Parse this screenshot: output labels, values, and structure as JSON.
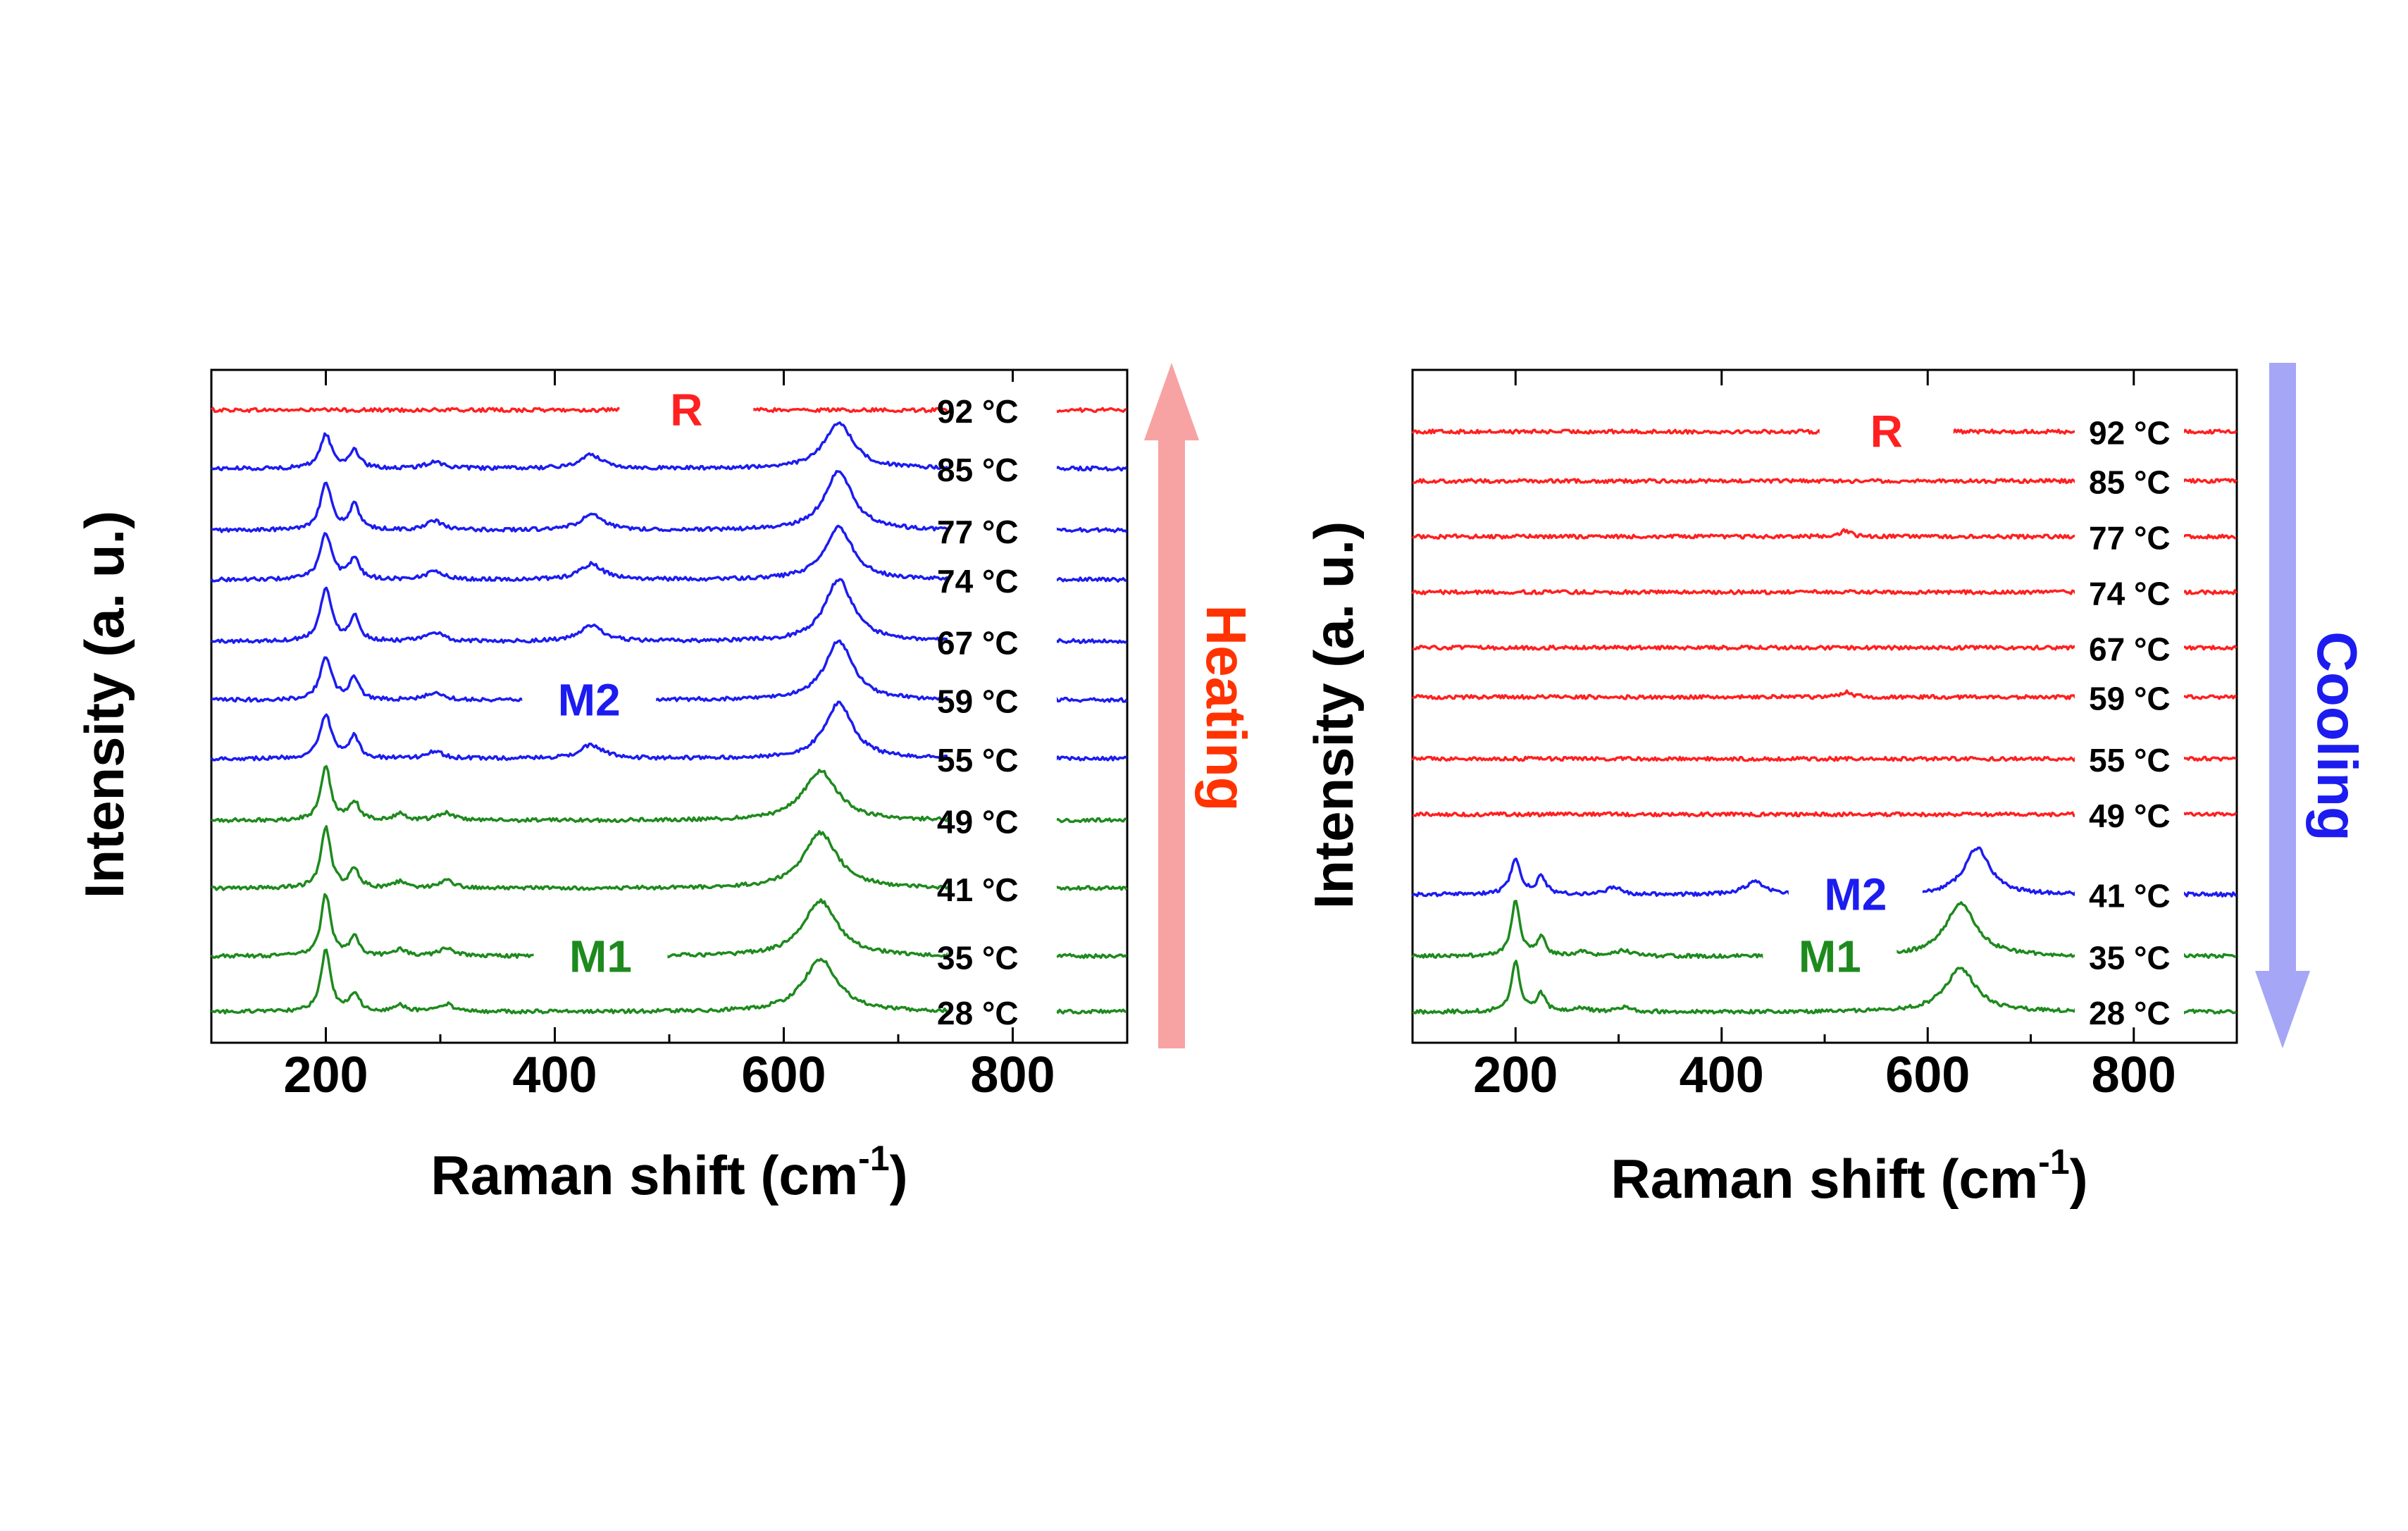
{
  "colors": {
    "R": "#ff2020",
    "M2": "#1c1cf0",
    "M1": "#1e8a1e",
    "axis": "#000000",
    "heating_arrow": "#f8a3a3",
    "heating_text": "#ff3300",
    "cooling_arrow": "#a6a6f6",
    "cooling_text": "#1c1cf0"
  },
  "chart_data": [
    {
      "type": "line",
      "xlabel": "Raman shift (cm",
      "xlabel_sup": "-1",
      "xlabel_end": ")",
      "ylabel": "Intensity (a. u.)",
      "xlim": [
        100,
        900
      ],
      "xticks": [
        {
          "value": 200,
          "label": "200"
        },
        {
          "value": 400,
          "label": "400"
        },
        {
          "value": 600,
          "label": "600"
        },
        {
          "value": 800,
          "label": "800"
        }
      ],
      "arrow": {
        "text": "Heating",
        "direction": "up"
      },
      "phase_labels": [
        {
          "text": "R",
          "phase": "R",
          "x": 515,
          "series": "92"
        },
        {
          "text": "M2",
          "phase": "M2",
          "x": 430,
          "series": "59"
        },
        {
          "text": "M1",
          "phase": "M1",
          "x": 440,
          "series": "35"
        }
      ],
      "series": [
        {
          "temp": "92",
          "label": "92 °C",
          "phase": "R",
          "offset": 9.95,
          "peaks": []
        },
        {
          "temp": "85",
          "label": "85 °C",
          "phase": "M2",
          "offset": 9.0,
          "peaks": [
            [
              200,
              0.55,
              6
            ],
            [
              225,
              0.3,
              5
            ],
            [
              295,
              0.12,
              8
            ],
            [
              432,
              0.22,
              12
            ],
            [
              648,
              0.75,
              15
            ]
          ]
        },
        {
          "temp": "77",
          "label": "77 °C",
          "phase": "M2",
          "offset": 8.0,
          "peaks": [
            [
              200,
              0.75,
              6
            ],
            [
              225,
              0.4,
              5
            ],
            [
              295,
              0.15,
              8
            ],
            [
              432,
              0.25,
              12
            ],
            [
              648,
              0.95,
              15
            ]
          ]
        },
        {
          "temp": "74",
          "label": "74 °C",
          "phase": "M2",
          "offset": 7.2,
          "peaks": [
            [
              200,
              0.75,
              6
            ],
            [
              225,
              0.35,
              5
            ],
            [
              295,
              0.15,
              8
            ],
            [
              432,
              0.25,
              12
            ],
            [
              648,
              0.85,
              15
            ]
          ]
        },
        {
          "temp": "67",
          "label": "67 °C",
          "phase": "M2",
          "offset": 6.2,
          "peaks": [
            [
              200,
              0.85,
              6
            ],
            [
              225,
              0.4,
              5
            ],
            [
              295,
              0.15,
              8
            ],
            [
              432,
              0.25,
              12
            ],
            [
              648,
              1.0,
              15
            ]
          ]
        },
        {
          "temp": "59",
          "label": "59 °C",
          "phase": "M2",
          "offset": 5.25,
          "peaks": [
            [
              200,
              0.7,
              6
            ],
            [
              225,
              0.35,
              5
            ],
            [
              295,
              0.12,
              8
            ],
            [
              432,
              0.22,
              12
            ],
            [
              648,
              0.95,
              15
            ]
          ]
        },
        {
          "temp": "55",
          "label": "55 °C",
          "phase": "M2",
          "offset": 4.3,
          "peaks": [
            [
              200,
              0.7,
              6
            ],
            [
              225,
              0.35,
              5
            ],
            [
              295,
              0.12,
              8
            ],
            [
              432,
              0.22,
              12
            ],
            [
              648,
              0.9,
              15
            ]
          ]
        },
        {
          "temp": "49",
          "label": "49 °C",
          "phase": "M1",
          "offset": 3.3,
          "peaks": [
            [
              200,
              0.9,
              5
            ],
            [
              225,
              0.3,
              5
            ],
            [
              265,
              0.1,
              6
            ],
            [
              305,
              0.12,
              8
            ],
            [
              632,
              0.8,
              18
            ]
          ]
        },
        {
          "temp": "41",
          "label": "41 °C",
          "phase": "M1",
          "offset": 2.2,
          "peaks": [
            [
              200,
              1.0,
              5
            ],
            [
              225,
              0.3,
              5
            ],
            [
              265,
              0.1,
              6
            ],
            [
              305,
              0.12,
              8
            ],
            [
              632,
              0.9,
              18
            ]
          ]
        },
        {
          "temp": "35",
          "label": "35 °C",
          "phase": "M1",
          "offset": 1.1,
          "peaks": [
            [
              200,
              1.0,
              5
            ],
            [
              225,
              0.3,
              5
            ],
            [
              265,
              0.1,
              6
            ],
            [
              305,
              0.12,
              8
            ],
            [
              632,
              0.9,
              18
            ]
          ]
        },
        {
          "temp": "28",
          "label": "28 °C",
          "phase": "M1",
          "offset": 0.2,
          "peaks": [
            [
              200,
              1.0,
              5
            ],
            [
              225,
              0.3,
              5
            ],
            [
              265,
              0.1,
              6
            ],
            [
              305,
              0.12,
              8
            ],
            [
              632,
              0.85,
              18
            ]
          ]
        }
      ]
    },
    {
      "type": "line",
      "xlabel": "Raman shift (cm",
      "xlabel_sup": "-1",
      "xlabel_end": ")",
      "ylabel": "Intensity (a. u.)",
      "xlim": [
        100,
        900
      ],
      "xticks": [
        {
          "value": 200,
          "label": "200"
        },
        {
          "value": 400,
          "label": "400"
        },
        {
          "value": 600,
          "label": "600"
        },
        {
          "value": 800,
          "label": "800"
        }
      ],
      "arrow": {
        "text": "Cooling",
        "direction": "down"
      },
      "phase_labels": [
        {
          "text": "R",
          "phase": "R",
          "x": 560,
          "series": "92"
        },
        {
          "text": "M2",
          "phase": "M2",
          "x": 530,
          "series": "41"
        },
        {
          "text": "M1",
          "phase": "M1",
          "x": 505,
          "series": "35"
        }
      ],
      "series": [
        {
          "temp": "92",
          "label": "92 °C",
          "phase": "R",
          "offset": 9.6,
          "peaks": []
        },
        {
          "temp": "85",
          "label": "85 °C",
          "phase": "R",
          "offset": 8.8,
          "peaks": []
        },
        {
          "temp": "77",
          "label": "77 °C",
          "phase": "R",
          "offset": 7.9,
          "peaks": [
            [
              520,
              0.1,
              6
            ]
          ]
        },
        {
          "temp": "74",
          "label": "74 °C",
          "phase": "R",
          "offset": 7.0,
          "peaks": []
        },
        {
          "temp": "67",
          "label": "67 °C",
          "phase": "R",
          "offset": 6.1,
          "peaks": []
        },
        {
          "temp": "59",
          "label": "59 °C",
          "phase": "R",
          "offset": 5.3,
          "peaks": [
            [
              520,
              0.08,
              6
            ]
          ]
        },
        {
          "temp": "55",
          "label": "55 °C",
          "phase": "R",
          "offset": 4.3,
          "peaks": []
        },
        {
          "temp": "49",
          "label": "49 °C",
          "phase": "R",
          "offset": 3.4,
          "peaks": []
        },
        {
          "temp": "41",
          "label": "41 °C",
          "phase": "M2",
          "offset": 2.1,
          "peaks": [
            [
              200,
              0.55,
              6
            ],
            [
              225,
              0.3,
              5
            ],
            [
              295,
              0.12,
              8
            ],
            [
              432,
              0.2,
              12
            ],
            [
              648,
              0.75,
              15
            ]
          ]
        },
        {
          "temp": "35",
          "label": "35 °C",
          "phase": "M1",
          "offset": 1.1,
          "peaks": [
            [
              200,
              0.9,
              5
            ],
            [
              225,
              0.3,
              5
            ],
            [
              265,
              0.08,
              6
            ],
            [
              305,
              0.1,
              8
            ],
            [
              632,
              0.85,
              18
            ]
          ]
        },
        {
          "temp": "28",
          "label": "28 °C",
          "phase": "M1",
          "offset": 0.2,
          "peaks": [
            [
              200,
              0.8,
              5
            ],
            [
              225,
              0.28,
              5
            ],
            [
              265,
              0.06,
              6
            ],
            [
              305,
              0.08,
              8
            ],
            [
              632,
              0.7,
              18
            ]
          ]
        }
      ]
    }
  ]
}
